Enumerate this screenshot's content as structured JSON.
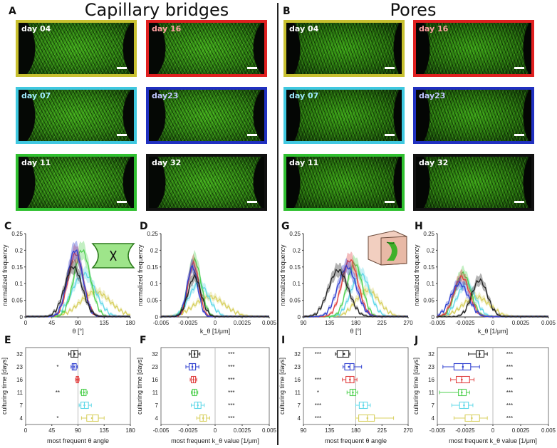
{
  "panels": {
    "A": "A",
    "B": "B",
    "C": "C",
    "D": "D",
    "E": "E",
    "F": "F",
    "G": "G",
    "H": "H",
    "I": "I",
    "J": "J"
  },
  "titles": {
    "left": "Capillary bridges",
    "right": "Pores"
  },
  "colors": {
    "day04": "#c8c030",
    "day07": "#40c8e0",
    "day11": "#30c030",
    "day16": "#e02020",
    "day23": "#2030c0",
    "day32": "#111111"
  },
  "tiles_left": [
    {
      "label": "day 04",
      "label_color": "#ffffff",
      "border": "#c8c030"
    },
    {
      "label": "day 16",
      "label_color": "#ffa0a0",
      "border": "#e02020"
    },
    {
      "label": "day 07",
      "label_color": "#a0ecff",
      "border": "#40c8e0"
    },
    {
      "label": "day23",
      "label_color": "#c0c8ff",
      "border": "#2030c0"
    },
    {
      "label": "day 11",
      "label_color": "#ffffff",
      "border": "#30c030"
    },
    {
      "label": "day 32",
      "label_color": "#ffffff",
      "border": "#111111"
    }
  ],
  "tiles_right": [
    {
      "label": "day 04",
      "label_color": "#ffffff",
      "border": "#c8c030"
    },
    {
      "label": "day 16",
      "label_color": "#ffa0a0",
      "border": "#e02020"
    },
    {
      "label": "day 07",
      "label_color": "#a0ecff",
      "border": "#40c8e0"
    },
    {
      "label": "day23",
      "label_color": "#c0c8ff",
      "border": "#2030c0"
    },
    {
      "label": "day 11",
      "label_color": "#ffffff",
      "border": "#30c030"
    },
    {
      "label": "day 32",
      "label_color": "#ffffff",
      "border": "#111111"
    }
  ],
  "chart_data": [
    {
      "id": "C",
      "type": "line",
      "xlabel": "θ [°]",
      "ylabel": "normalized frequency",
      "xlim": [
        0,
        180
      ],
      "ylim": [
        0,
        0.25
      ],
      "xticks": [
        "0",
        "45",
        "90",
        "135",
        "180"
      ],
      "yticks": [
        "0",
        "0.05",
        "0.1",
        "0.15",
        "0.2",
        "0.25"
      ],
      "series": [
        {
          "name": "day 04",
          "color": "#d8d060",
          "mean": 120,
          "sd": 26,
          "peak": 0.075
        },
        {
          "name": "day 07",
          "color": "#60d8e8",
          "mean": 100,
          "sd": 20,
          "peak": 0.13
        },
        {
          "name": "day 11",
          "color": "#50d050",
          "mean": 97,
          "sd": 14,
          "peak": 0.2
        },
        {
          "name": "day 16",
          "color": "#e04040",
          "mean": 86,
          "sd": 13,
          "peak": 0.19
        },
        {
          "name": "day 23",
          "color": "#3040d0",
          "mean": 85,
          "sd": 13,
          "peak": 0.2
        },
        {
          "name": "day 32",
          "color": "#222222",
          "mean": 82,
          "sd": 15,
          "peak": 0.15
        }
      ]
    },
    {
      "id": "D",
      "type": "line",
      "xlabel": "k_θ [1/μm]",
      "ylabel": "normalized frequency",
      "xlim": [
        -0.005,
        0.005
      ],
      "ylim": [
        0,
        0.25
      ],
      "xticks": [
        "-0.005",
        "-0.0025",
        "0",
        "0.0025",
        "0.005"
      ],
      "yticks": [
        "0",
        "0.05",
        "0.1",
        "0.15",
        "0.2",
        "0.25"
      ],
      "series": [
        {
          "name": "day 04",
          "color": "#d8d060",
          "mean": -0.0005,
          "sd": 0.0014,
          "peak": 0.06
        },
        {
          "name": "day 07",
          "color": "#60d8e8",
          "mean": -0.0015,
          "sd": 0.0009,
          "peak": 0.1
        },
        {
          "name": "day 11",
          "color": "#50d050",
          "mean": -0.0019,
          "sd": 0.0006,
          "peak": 0.17
        },
        {
          "name": "day 16",
          "color": "#e04040",
          "mean": -0.002,
          "sd": 0.0005,
          "peak": 0.16
        },
        {
          "name": "day 23",
          "color": "#3040d0",
          "mean": -0.0021,
          "sd": 0.0005,
          "peak": 0.15
        },
        {
          "name": "day 32",
          "color": "#222222",
          "mean": -0.0019,
          "sd": 0.0006,
          "peak": 0.12
        }
      ]
    },
    {
      "id": "G",
      "type": "line",
      "xlabel": "θ [°]",
      "ylabel": "normalized frequency",
      "xlim": [
        90,
        270
      ],
      "ylim": [
        0,
        0.25
      ],
      "xticks": [
        "90",
        "135",
        "180",
        "225",
        "270"
      ],
      "yticks": [
        "0",
        "0.05",
        "0.1",
        "0.15",
        "0.2",
        "0.25"
      ],
      "series": [
        {
          "name": "day 04",
          "color": "#d8d060",
          "mean": 200,
          "sd": 20,
          "peak": 0.08
        },
        {
          "name": "day 07",
          "color": "#60d8e8",
          "mean": 188,
          "sd": 16,
          "peak": 0.13
        },
        {
          "name": "day 11",
          "color": "#50d050",
          "mean": 178,
          "sd": 13,
          "peak": 0.16
        },
        {
          "name": "day 16",
          "color": "#e04040",
          "mean": 170,
          "sd": 14,
          "peak": 0.17
        },
        {
          "name": "day 23",
          "color": "#3040d0",
          "mean": 165,
          "sd": 16,
          "peak": 0.15
        },
        {
          "name": "day 32",
          "color": "#222222",
          "mean": 150,
          "sd": 17,
          "peak": 0.14
        }
      ]
    },
    {
      "id": "H",
      "type": "line",
      "xlabel": "k_θ [1/μm]",
      "ylabel": "normalized frequency",
      "xlim": [
        -0.005,
        0.005
      ],
      "ylim": [
        0,
        0.25
      ],
      "xticks": [
        "-0.005",
        "-0.0025",
        "0",
        "0.0025",
        "0.005"
      ],
      "yticks": [
        "0",
        "0.05",
        "0.1",
        "0.15",
        "0.2",
        "0.25"
      ],
      "series": [
        {
          "name": "day 04",
          "color": "#d8d060",
          "mean": -0.0015,
          "sd": 0.0012,
          "peak": 0.06
        },
        {
          "name": "day 07",
          "color": "#60d8e8",
          "mean": -0.0024,
          "sd": 0.0008,
          "peak": 0.1
        },
        {
          "name": "day 11",
          "color": "#50d050",
          "mean": -0.0027,
          "sd": 0.0007,
          "peak": 0.13
        },
        {
          "name": "day 16",
          "color": "#e04040",
          "mean": -0.0028,
          "sd": 0.0007,
          "peak": 0.12
        },
        {
          "name": "day 23",
          "color": "#3040d0",
          "mean": -0.003,
          "sd": 0.0008,
          "peak": 0.1
        },
        {
          "name": "day 32",
          "color": "#222222",
          "mean": -0.0012,
          "sd": 0.0007,
          "peak": 0.11
        }
      ]
    },
    {
      "id": "E",
      "type": "box",
      "xlabel": "most frequent θ angle",
      "ylabel": "culturing time [days]",
      "xlim": [
        0,
        180
      ],
      "xticks": [
        "0",
        "45",
        "90",
        "135",
        "180"
      ],
      "ref": 90,
      "rows": [
        {
          "day": "32",
          "color": "#222222",
          "q1": 78,
          "med": 83,
          "q3": 90,
          "wl": 74,
          "wh": 94,
          "mean": 84,
          "sig": ""
        },
        {
          "day": "23",
          "color": "#3040d0",
          "q1": 80,
          "med": 83,
          "q3": 87,
          "wl": 78,
          "wh": 89,
          "mean": 83,
          "sig": "*"
        },
        {
          "day": "16",
          "color": "#e04040",
          "q1": 87,
          "med": 89,
          "q3": 91,
          "wl": 86,
          "wh": 92,
          "mean": 89,
          "sig": ""
        },
        {
          "day": "11",
          "color": "#50d050",
          "q1": 96,
          "med": 100,
          "q3": 104,
          "wl": 94,
          "wh": 106,
          "mean": 100,
          "sig": "**"
        },
        {
          "day": "7",
          "color": "#60d8e8",
          "q1": 95,
          "med": 101,
          "q3": 108,
          "wl": 92,
          "wh": 113,
          "mean": 101,
          "sig": ""
        },
        {
          "day": "4",
          "color": "#d8d060",
          "q1": 105,
          "med": 115,
          "q3": 125,
          "wl": 96,
          "wh": 135,
          "mean": 114,
          "sig": "*"
        }
      ]
    },
    {
      "id": "F",
      "type": "box",
      "xlabel": "most frequent k_θ value [1/μm]",
      "ylabel": "culturing time [days]",
      "xlim": [
        -0.005,
        0.005
      ],
      "xticks": [
        "-0.005",
        "-0.0025",
        "0",
        "0.0025",
        "0.005"
      ],
      "ref": 0,
      "rows": [
        {
          "day": "32",
          "color": "#222222",
          "q1": -0.0022,
          "med": -0.0019,
          "q3": -0.0016,
          "wl": -0.0024,
          "wh": -0.0014,
          "mean": -0.0019,
          "sig": "***"
        },
        {
          "day": "23",
          "color": "#3040d0",
          "q1": -0.0024,
          "med": -0.0021,
          "q3": -0.0018,
          "wl": -0.0027,
          "wh": -0.0015,
          "mean": -0.0021,
          "sig": "***"
        },
        {
          "day": "16",
          "color": "#e04040",
          "q1": -0.0022,
          "med": -0.002,
          "q3": -0.0018,
          "wl": -0.0023,
          "wh": -0.0017,
          "mean": -0.002,
          "sig": "***"
        },
        {
          "day": "11",
          "color": "#50d050",
          "q1": -0.0021,
          "med": -0.0019,
          "q3": -0.0017,
          "wl": -0.0022,
          "wh": -0.0016,
          "mean": -0.0019,
          "sig": "***"
        },
        {
          "day": "7",
          "color": "#60d8e8",
          "q1": -0.0019,
          "med": -0.0016,
          "q3": -0.0013,
          "wl": -0.0022,
          "wh": -0.001,
          "mean": -0.0016,
          "sig": "***"
        },
        {
          "day": "4",
          "color": "#d8d060",
          "q1": -0.0014,
          "med": -0.0011,
          "q3": -0.0008,
          "wl": -0.0017,
          "wh": -0.0005,
          "mean": -0.0011,
          "sig": "***"
        }
      ]
    },
    {
      "id": "I",
      "type": "box",
      "xlabel": "most frequent θ angle",
      "ylabel": "culturing time [days]",
      "xlim": [
        90,
        270
      ],
      "xticks": [
        "90",
        "135",
        "180",
        "225",
        "270"
      ],
      "ref": 180,
      "rows": [
        {
          "day": "32",
          "color": "#222222",
          "q1": 148,
          "med": 158,
          "q3": 168,
          "wl": 145,
          "wh": 170,
          "mean": 160,
          "sig": "***"
        },
        {
          "day": "23",
          "color": "#3040d0",
          "q1": 161,
          "med": 170,
          "q3": 177,
          "wl": 158,
          "wh": 190,
          "mean": 168,
          "sig": ""
        },
        {
          "day": "16",
          "color": "#e04040",
          "q1": 163,
          "med": 170,
          "q3": 177,
          "wl": 157,
          "wh": 182,
          "mean": 170,
          "sig": "***"
        },
        {
          "day": "11",
          "color": "#50d050",
          "q1": 170,
          "med": 175,
          "q3": 180,
          "wl": 165,
          "wh": 183,
          "mean": 175,
          "sig": "*"
        },
        {
          "day": "7",
          "color": "#60d8e8",
          "q1": 186,
          "med": 193,
          "q3": 200,
          "wl": 180,
          "wh": 205,
          "mean": 193,
          "sig": "***"
        },
        {
          "day": "4",
          "color": "#d8d060",
          "q1": 185,
          "med": 200,
          "q3": 212,
          "wl": 180,
          "wh": 245,
          "mean": 200,
          "sig": "***"
        }
      ]
    },
    {
      "id": "J",
      "type": "box",
      "xlabel": "most frequent k_θ value [1/μm]",
      "ylabel": "culturing time [days]",
      "xlim": [
        -0.005,
        0.005
      ],
      "xticks": [
        "-0.005",
        "-0.0025",
        "0",
        "0.0025",
        "0.005"
      ],
      "ref": 0,
      "rows": [
        {
          "day": "32",
          "color": "#222222",
          "q1": -0.0015,
          "med": -0.0012,
          "q3": -0.0008,
          "wl": -0.0022,
          "wh": -0.0005,
          "mean": -0.0012,
          "sig": "***"
        },
        {
          "day": "23",
          "color": "#3040d0",
          "q1": -0.0035,
          "med": -0.0027,
          "q3": -0.002,
          "wl": -0.0045,
          "wh": -0.0012,
          "mean": -0.0027,
          "sig": "***"
        },
        {
          "day": "16",
          "color": "#e04040",
          "q1": -0.0033,
          "med": -0.0028,
          "q3": -0.0021,
          "wl": -0.0038,
          "wh": -0.0017,
          "mean": -0.0028,
          "sig": "***"
        },
        {
          "day": "11",
          "color": "#50d050",
          "q1": -0.0031,
          "med": -0.0028,
          "q3": -0.0024,
          "wl": -0.0048,
          "wh": -0.0021,
          "mean": -0.0028,
          "sig": "***"
        },
        {
          "day": "7",
          "color": "#60d8e8",
          "q1": -0.003,
          "med": -0.0026,
          "q3": -0.0022,
          "wl": -0.0037,
          "wh": -0.0018,
          "mean": -0.0026,
          "sig": "***"
        },
        {
          "day": "4",
          "color": "#d8d060",
          "q1": -0.0025,
          "med": -0.0019,
          "q3": -0.0012,
          "wl": -0.0035,
          "wh": -0.0005,
          "mean": -0.0019,
          "sig": "***"
        }
      ]
    }
  ]
}
